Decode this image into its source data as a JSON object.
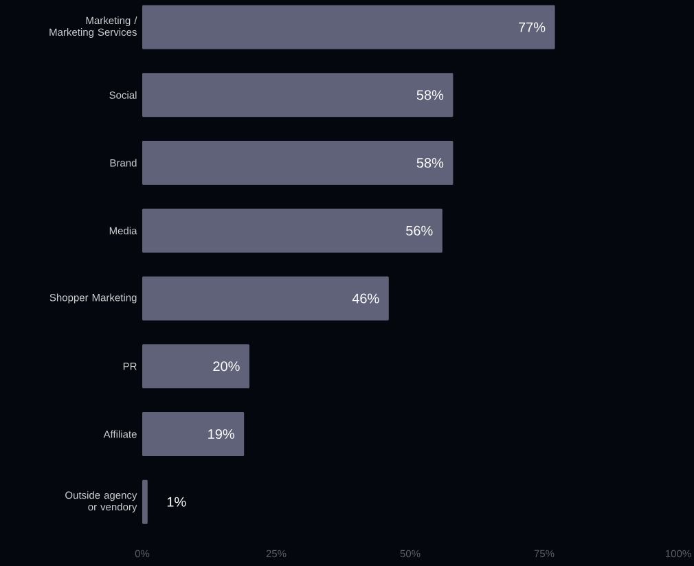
{
  "chart_data": {
    "type": "bar",
    "orientation": "horizontal",
    "categories": [
      "Marketing / Marketing Services",
      "Social",
      "Brand",
      "Media",
      "Shopper Marketing",
      "PR",
      "Affiliate",
      "Outside agency or vendory"
    ],
    "values": [
      77,
      58,
      58,
      56,
      46,
      20,
      19,
      1
    ],
    "value_labels": [
      "77%",
      "58%",
      "58%",
      "56%",
      "46%",
      "20%",
      "19%",
      "1%"
    ],
    "color": "#5f6278",
    "xlim": [
      0,
      100
    ],
    "xticks": [
      {
        "value": 0,
        "label": "0%"
      },
      {
        "value": 25,
        "label": "25%"
      },
      {
        "value": 50,
        "label": "50%"
      },
      {
        "value": 75,
        "label": "75%"
      },
      {
        "value": 100,
        "label": "100%"
      }
    ],
    "grid": false
  }
}
